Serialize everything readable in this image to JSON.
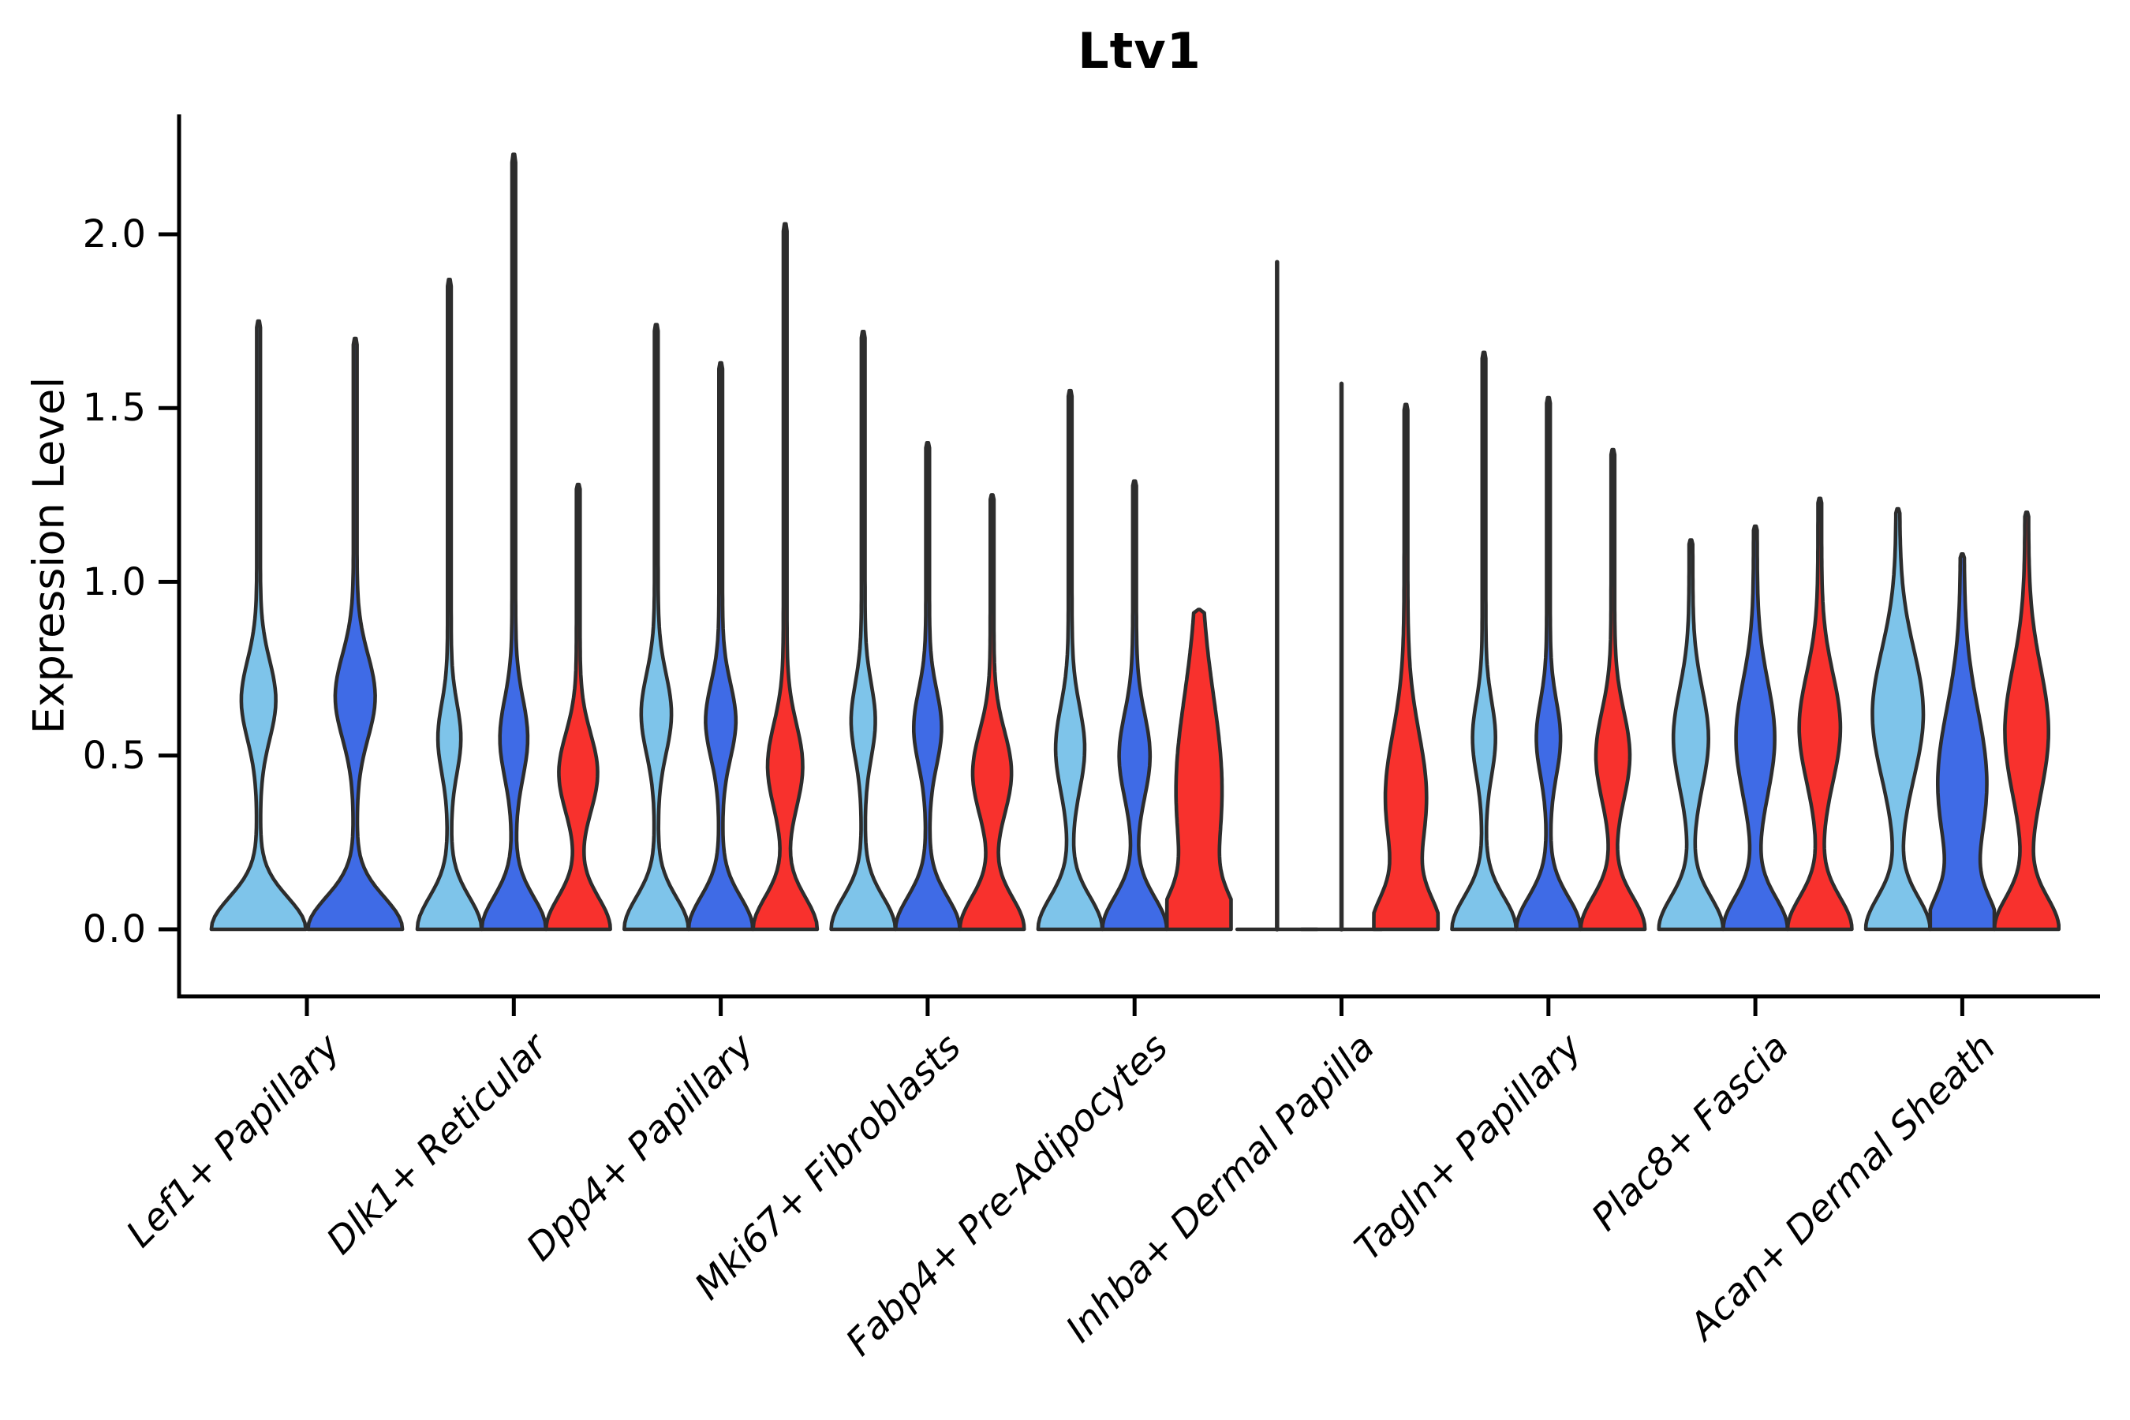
{
  "chart_data": {
    "type": "violin",
    "title": "Ltv1",
    "ylabel": "Expression Level",
    "ylim": [
      0,
      2.35
    ],
    "grid": false,
    "legend": "none",
    "y_ticks": [
      {
        "label": "0.0",
        "value": 0.0
      },
      {
        "label": "0.5",
        "value": 0.5
      },
      {
        "label": "1.0",
        "value": 1.0
      },
      {
        "label": "1.5",
        "value": 1.5
      },
      {
        "label": "2.0",
        "value": 2.0
      }
    ],
    "categories": [
      "Lef1+ Papillary",
      "Dlk1+ Reticular",
      "Dpp4+ Papillary",
      "Mki67+ Fibroblasts",
      "Fabp4+ Pre-Adipocytes",
      "Inhba+ Dermal Papilla",
      "Tagln+ Papillary",
      "Plac8+ Fascia",
      "Acan+ Dermal Sheath"
    ],
    "series": [
      {
        "name": "light-blue-group",
        "color": "#7EC4EA"
      },
      {
        "name": "royal-blue-group",
        "color": "#3F6BE6"
      },
      {
        "name": "red-group",
        "color": "#F8312D"
      }
    ],
    "outline_color": "#2d2d2d",
    "axis_color": "#000000",
    "violins": [
      {
        "category": "Lef1+ Papillary",
        "items": [
          {
            "series": 0,
            "max": 1.75,
            "mid": 0.66,
            "midw": 0.34,
            "sigma": 0.16,
            "flat": false
          },
          {
            "series": 1,
            "max": 1.7,
            "mid": 0.67,
            "midw": 0.4,
            "sigma": 0.17,
            "flat": false
          }
        ]
      },
      {
        "category": "Dlk1+ Reticular",
        "items": [
          {
            "series": 0,
            "max": 1.87,
            "mid": 0.55,
            "midw": 0.32,
            "sigma": 0.14,
            "flat": false
          },
          {
            "series": 1,
            "max": 2.23,
            "mid": 0.55,
            "midw": 0.4,
            "sigma": 0.16,
            "flat": false
          },
          {
            "series": 2,
            "max": 1.28,
            "mid": 0.45,
            "midw": 0.58,
            "sigma": 0.16,
            "flat": false
          }
        ]
      },
      {
        "category": "Dpp4+ Papillary",
        "items": [
          {
            "series": 0,
            "max": 1.74,
            "mid": 0.62,
            "midw": 0.44,
            "sigma": 0.16,
            "flat": false
          },
          {
            "series": 1,
            "max": 1.63,
            "mid": 0.6,
            "midw": 0.44,
            "sigma": 0.15,
            "flat": false
          },
          {
            "series": 2,
            "max": 2.03,
            "mid": 0.47,
            "midw": 0.52,
            "sigma": 0.17,
            "flat": false
          }
        ]
      },
      {
        "category": "Mki67+ Fibroblasts",
        "items": [
          {
            "series": 0,
            "max": 1.72,
            "mid": 0.6,
            "midw": 0.34,
            "sigma": 0.15,
            "flat": false
          },
          {
            "series": 1,
            "max": 1.4,
            "mid": 0.58,
            "midw": 0.4,
            "sigma": 0.15,
            "flat": false
          },
          {
            "series": 2,
            "max": 1.25,
            "mid": 0.45,
            "midw": 0.58,
            "sigma": 0.17,
            "flat": false
          }
        ]
      },
      {
        "category": "Fabp4+ Pre-Adipocytes",
        "items": [
          {
            "series": 0,
            "max": 1.55,
            "mid": 0.52,
            "midw": 0.42,
            "sigma": 0.17,
            "flat": false
          },
          {
            "series": 1,
            "max": 1.29,
            "mid": 0.5,
            "midw": 0.45,
            "sigma": 0.17,
            "flat": false
          },
          {
            "series": 2,
            "max": 0.92,
            "mid": 0.4,
            "midw": 0.7,
            "sigma": 0.38,
            "flat": false
          }
        ]
      },
      {
        "category": "Inhba+ Dermal Papilla",
        "items": [
          {
            "series": 0,
            "max": 1.92,
            "mid": 0,
            "midw": 0,
            "sigma": 0.2,
            "flat": true
          },
          {
            "series": 1,
            "max": 1.57,
            "mid": 0,
            "midw": 0,
            "sigma": 0.2,
            "flat": true
          },
          {
            "series": 2,
            "max": 1.51,
            "mid": 0.38,
            "midw": 0.62,
            "sigma": 0.26,
            "flat": false
          }
        ]
      },
      {
        "category": "Tagln+ Papillary",
        "items": [
          {
            "series": 0,
            "max": 1.66,
            "mid": 0.55,
            "midw": 0.32,
            "sigma": 0.15,
            "flat": false
          },
          {
            "series": 1,
            "max": 1.53,
            "mid": 0.55,
            "midw": 0.34,
            "sigma": 0.15,
            "flat": false
          },
          {
            "series": 2,
            "max": 1.38,
            "mid": 0.5,
            "midw": 0.5,
            "sigma": 0.18,
            "flat": false
          }
        ]
      },
      {
        "category": "Plac8+ Fascia",
        "items": [
          {
            "series": 0,
            "max": 1.12,
            "mid": 0.55,
            "midw": 0.52,
            "sigma": 0.2,
            "flat": false
          },
          {
            "series": 1,
            "max": 1.16,
            "mid": 0.55,
            "midw": 0.58,
            "sigma": 0.23,
            "flat": false
          },
          {
            "series": 2,
            "max": 1.24,
            "mid": 0.58,
            "midw": 0.62,
            "sigma": 0.22,
            "flat": false
          }
        ]
      },
      {
        "category": "Acan+ Dermal Sheath",
        "items": [
          {
            "series": 0,
            "max": 1.21,
            "mid": 0.62,
            "midw": 0.78,
            "sigma": 0.26,
            "flat": false
          },
          {
            "series": 1,
            "max": 1.08,
            "mid": 0.42,
            "midw": 0.75,
            "sigma": 0.3,
            "flat": false
          },
          {
            "series": 2,
            "max": 1.2,
            "mid": 0.57,
            "midw": 0.66,
            "sigma": 0.26,
            "flat": false
          }
        ]
      }
    ]
  }
}
